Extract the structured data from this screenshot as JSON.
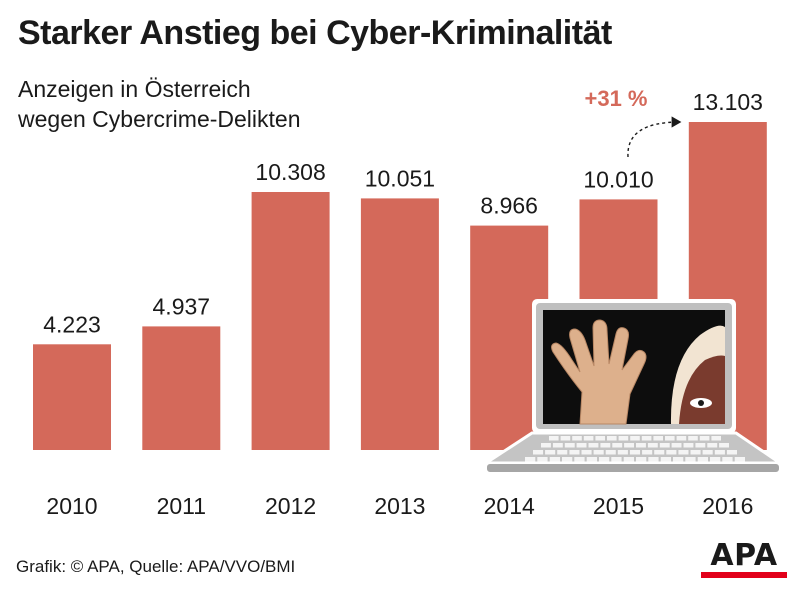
{
  "header": {
    "title": "Starker Anstieg bei Cyber-Kriminalität",
    "subtitle_line1": "Anzeigen in Österreich",
    "subtitle_line2": "wegen Cybercrime-Delikten"
  },
  "chart_data": {
    "type": "bar",
    "title": "Starker Anstieg bei Cyber-Kriminalität",
    "subtitle": "Anzeigen in Österreich wegen Cybercrime-Delikten",
    "categories": [
      "2010",
      "2011",
      "2012",
      "2013",
      "2014",
      "2015",
      "2016"
    ],
    "values": [
      4223,
      4937,
      10308,
      10051,
      8966,
      10010,
      13103
    ],
    "value_labels": [
      "4.223",
      "4.937",
      "10.308",
      "10.051",
      "8.966",
      "10.010",
      "13.103"
    ],
    "xlabel": "",
    "ylabel": "",
    "ylim": [
      0,
      13103
    ],
    "grid": false,
    "annotation": {
      "text": "+31 %",
      "from": "2015",
      "to": "2016"
    },
    "colors": {
      "bar": "#d4695a",
      "annotation": "#d4695a"
    }
  },
  "footer": {
    "source": "Grafik: © APA, Quelle: APA/VVO/BMI",
    "logo_text": "APA",
    "logo_bar_color": "#e2001a"
  }
}
